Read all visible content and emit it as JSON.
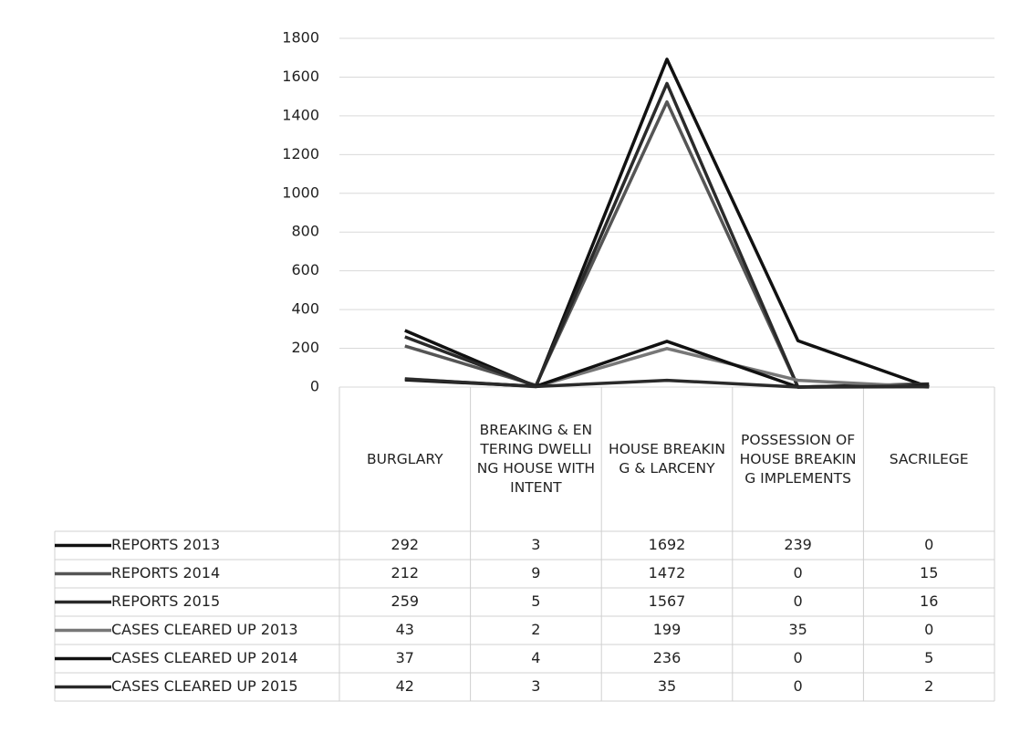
{
  "chart_data": {
    "type": "line",
    "categories": [
      "BURGLARY",
      "BREAKING & ENTERING DWELLING HOUSE WITH INTENT",
      "HOUSE BREAKING & LARCENY",
      "POSSESSION OF HOUSE BREAKING IMPLEMENTS",
      "SACRILEGE"
    ],
    "series": [
      {
        "name": "REPORTS 2013",
        "color": "#111111",
        "values": [
          292,
          3,
          1692,
          239,
          0
        ]
      },
      {
        "name": "REPORTS 2014",
        "color": "#555555",
        "values": [
          212,
          9,
          1472,
          0,
          15
        ]
      },
      {
        "name": "REPORTS 2015",
        "color": "#2a2a2a",
        "values": [
          259,
          5,
          1567,
          0,
          16
        ]
      },
      {
        "name": "CASES CLEARED UP 2013",
        "color": "#777777",
        "values": [
          43,
          2,
          199,
          35,
          0
        ]
      },
      {
        "name": "CASES CLEARED UP 2014",
        "color": "#111111",
        "values": [
          37,
          4,
          236,
          0,
          5
        ]
      },
      {
        "name": "CASES CLEARED UP 2015",
        "color": "#2a2a2a",
        "values": [
          42,
          3,
          35,
          0,
          2
        ]
      }
    ],
    "ylim": [
      0,
      1800
    ],
    "yticks": [
      0,
      200,
      400,
      600,
      800,
      1000,
      1200,
      1400,
      1600,
      1800
    ],
    "grid": true
  }
}
